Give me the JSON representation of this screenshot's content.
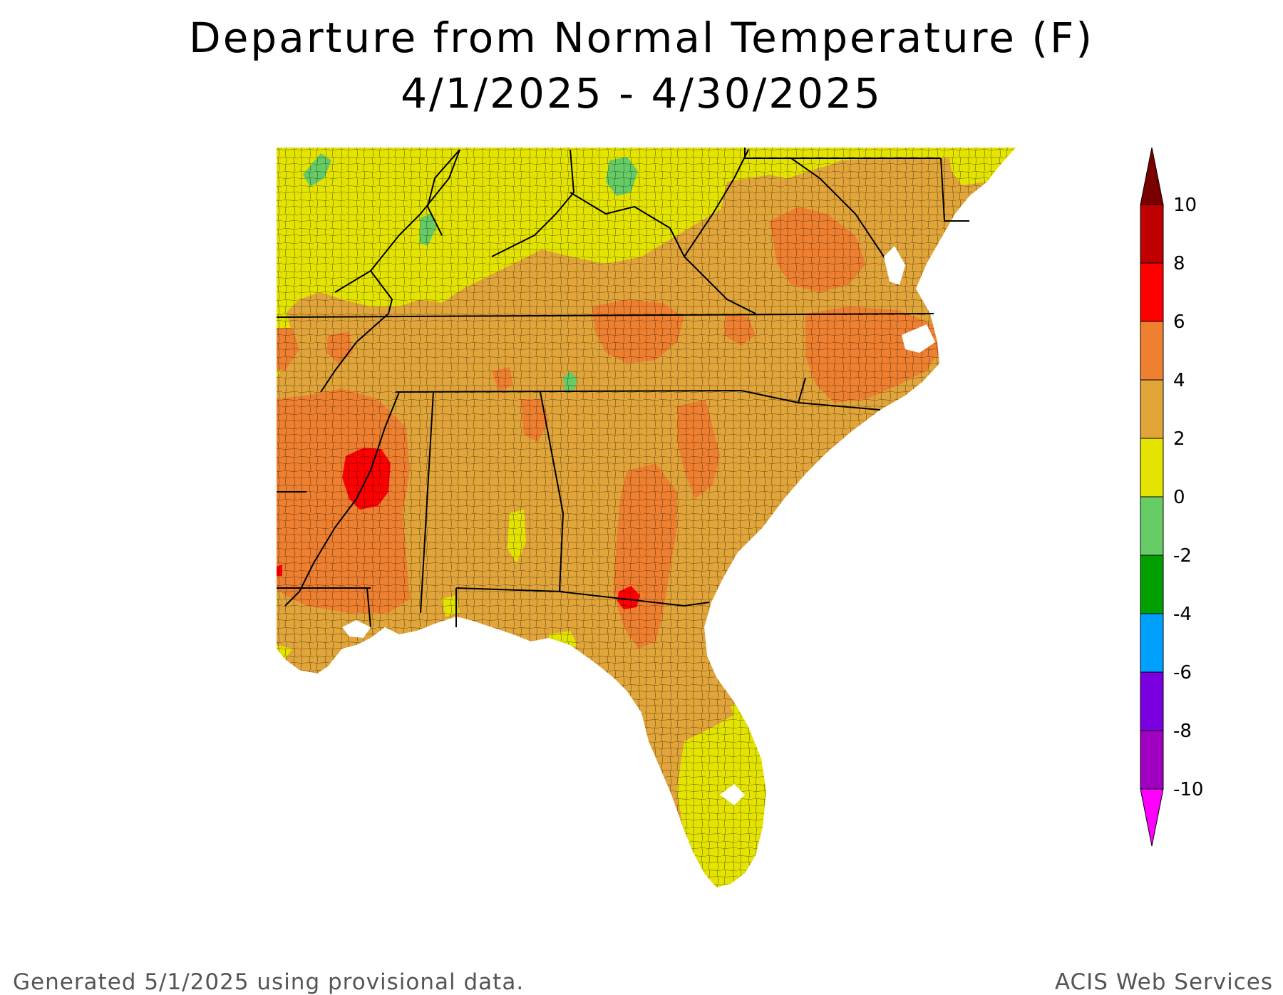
{
  "title": {
    "line1": "Departure from Normal Temperature (F)",
    "line2": "4/1/2025 - 4/30/2025"
  },
  "legend": {
    "ticks": [
      "10",
      "8",
      "6",
      "4",
      "2",
      "0",
      "-2",
      "-4",
      "-6",
      "-8",
      "-10"
    ],
    "colors": {
      "gt10": "#7a0000",
      "8_10": "#c00000",
      "6_8": "#ff0000",
      "4_6": "#ef8030",
      "2_4": "#e2a53a",
      "0_2": "#e4e400",
      "m2_0": "#66cc66",
      "m4_m2": "#00a000",
      "m6_m4": "#00a0ff",
      "m8_m6": "#7a00e0",
      "m10_m8": "#a000c0",
      "lt_m10": "#ff00ff"
    }
  },
  "footer": {
    "left": "Generated 5/1/2025 using provisional data.",
    "right": "ACIS Web Services"
  }
}
